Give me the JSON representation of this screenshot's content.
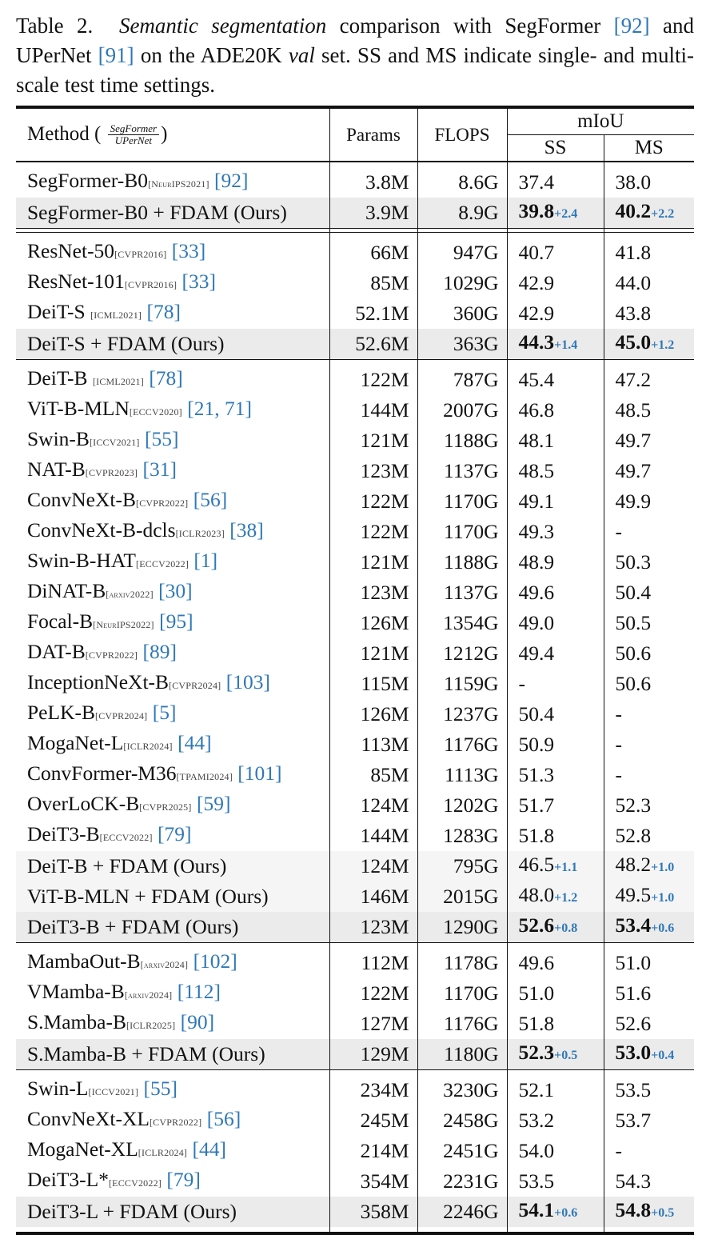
{
  "caption": {
    "label": "Table 2.",
    "title_italic": "Semantic segmentation",
    "text1": " comparison with SegFormer ",
    "cite1": "[92]",
    "text2": " and UPerNet ",
    "cite2": "[91]",
    "text3": " on the ADE20K ",
    "val_italic": "val",
    "text4": " set.  SS and MS indicate single- and multi-scale test time settings."
  },
  "header": {
    "method": "Method (",
    "method_close": ")",
    "frac_num": "SegFormer",
    "frac_den": "UPerNet",
    "params": "Params",
    "flops": "FLOPS",
    "miou": "mIoU",
    "ss": "SS",
    "ms": "MS"
  },
  "groups": [
    {
      "rows": [
        {
          "name": "SegFormer-B0",
          "src": "[NeurIPS2021]",
          "cite": "[92]",
          "params": "3.8M",
          "flops": "8.6G",
          "ss": "37.4",
          "ms": "38.0"
        },
        {
          "name": "SegFormer-B0 + FDAM (Ours)",
          "params": "3.9M",
          "flops": "8.9G",
          "ss": "39.8",
          "ss_d": "+2.4",
          "ms": "40.2",
          "ms_d": "+2.2",
          "ours": true,
          "bold": true
        }
      ]
    },
    {
      "rows": [
        {
          "name": "ResNet-50",
          "src": "[CVPR2016]",
          "cite": "[33]",
          "params": "66M",
          "flops": "947G",
          "ss": "40.7",
          "ms": "41.8"
        },
        {
          "name": "ResNet-101",
          "src": "[CVPR2016]",
          "cite": "[33]",
          "params": "85M",
          "flops": "1029G",
          "ss": "42.9",
          "ms": "44.0"
        },
        {
          "name": "DeiT-S ",
          "src": "[ICML2021]",
          "cite": "[78]",
          "params": "52.1M",
          "flops": "360G",
          "ss": "42.9",
          "ms": "43.8"
        },
        {
          "name": "DeiT-S + FDAM (Ours)",
          "params": "52.6M",
          "flops": "363G",
          "ss": "44.3",
          "ss_d": "+1.4",
          "ms": "45.0",
          "ms_d": "+1.2",
          "ours": true,
          "bold": true
        }
      ]
    },
    {
      "rows": [
        {
          "name": "DeiT-B ",
          "src": "[ICML2021]",
          "cite": "[78]",
          "params": "122M",
          "flops": "787G",
          "ss": "45.4",
          "ms": "47.2"
        },
        {
          "name": "ViT-B-MLN",
          "src": "[ECCV2020]",
          "cite": "[21, 71]",
          "params": "144M",
          "flops": "2007G",
          "ss": "46.8",
          "ms": "48.5"
        },
        {
          "name": "Swin-B",
          "src": "[ICCV2021]",
          "cite": "[55]",
          "params": "121M",
          "flops": "1188G",
          "ss": "48.1",
          "ms": "49.7"
        },
        {
          "name": "NAT-B",
          "src": "[CVPR2023]",
          "cite": "[31]",
          "params": "123M",
          "flops": "1137G",
          "ss": "48.5",
          "ms": "49.7"
        },
        {
          "name": "ConvNeXt-B",
          "src": "[CVPR2022]",
          "cite": "[56]",
          "params": "122M",
          "flops": "1170G",
          "ss": "49.1",
          "ms": "49.9"
        },
        {
          "name": "ConvNeXt-B-dcls",
          "src": "[ICLR2023]",
          "cite": "[38]",
          "params": "122M",
          "flops": "1170G",
          "ss": "49.3",
          "ms": "-"
        },
        {
          "name": "Swin-B-HAT",
          "src": "[ECCV2022]",
          "cite": "[1]",
          "params": "121M",
          "flops": "1188G",
          "ss": "48.9",
          "ms": "50.3"
        },
        {
          "name": "DiNAT-B",
          "src": "[arxiv2022]",
          "cite": "[30]",
          "params": "123M",
          "flops": "1137G",
          "ss": "49.6",
          "ms": "50.4"
        },
        {
          "name": "Focal-B",
          "src": "[NeurIPS2022]",
          "cite": "[95]",
          "params": "126M",
          "flops": "1354G",
          "ss": "49.0",
          "ms": "50.5"
        },
        {
          "name": "DAT-B",
          "src": "[CVPR2022]",
          "cite": "[89]",
          "params": "121M",
          "flops": "1212G",
          "ss": "49.4",
          "ms": "50.6"
        },
        {
          "name": "InceptionNeXt-B",
          "src": "[CVPR2024]",
          "cite": "[103]",
          "params": "115M",
          "flops": "1159G",
          "ss": "-",
          "ms": "50.6"
        },
        {
          "name": "PeLK-B",
          "src": "[CVPR2024]",
          "cite": "[5]",
          "params": "126M",
          "flops": "1237G",
          "ss": "50.4",
          "ms": "-"
        },
        {
          "name": "MogaNet-L",
          "src": "[ICLR2024]",
          "cite": "[44]",
          "params": "113M",
          "flops": "1176G",
          "ss": "50.9",
          "ms": "-"
        },
        {
          "name": "ConvFormer-M36",
          "src": "[TPAMI2024]",
          "cite": "[101]",
          "params": "85M",
          "flops": "1113G",
          "ss": "51.3",
          "ms": "-"
        },
        {
          "name": "OverLoCK-B",
          "src": "[CVPR2025]",
          "cite": "[59]",
          "params": "124M",
          "flops": "1202G",
          "ss": "51.7",
          "ms": "52.3"
        },
        {
          "name": "DeiT3-B",
          "src": "[ECCV2022]",
          "cite": "[79]",
          "params": "144M",
          "flops": "1283G",
          "ss": "51.8",
          "ms": "52.8"
        },
        {
          "name": "DeiT-B + FDAM (Ours)",
          "params": "124M",
          "flops": "795G",
          "ss": "46.5",
          "ss_d": "+1.1",
          "ms": "48.2",
          "ms_d": "+1.0",
          "ours": true,
          "light": true
        },
        {
          "name": "ViT-B-MLN + FDAM (Ours)",
          "params": "146M",
          "flops": "2015G",
          "ss": "48.0",
          "ss_d": "+1.2",
          "ms": "49.5",
          "ms_d": "+1.0",
          "ours": true,
          "light": true
        },
        {
          "name": "DeiT3-B + FDAM (Ours)",
          "params": "123M",
          "flops": "1290G",
          "ss": "52.6",
          "ss_d": "+0.8",
          "ms": "53.4",
          "ms_d": "+0.6",
          "ours": true,
          "bold": true
        }
      ]
    },
    {
      "rows": [
        {
          "name": "MambaOut-B",
          "src": "[arxiv2024]",
          "cite": "[102]",
          "params": "112M",
          "flops": "1178G",
          "ss": "49.6",
          "ms": "51.0"
        },
        {
          "name": "VMamba-B",
          "src": "[arxiv2024]",
          "cite": "[112]",
          "params": "122M",
          "flops": "1170G",
          "ss": "51.0",
          "ms": "51.6"
        },
        {
          "name": "S.Mamba-B",
          "src": "[ICLR2025]",
          "cite": "[90]",
          "params": "127M",
          "flops": "1176G",
          "ss": "51.8",
          "ms": "52.6"
        },
        {
          "name": "S.Mamba-B + FDAM (Ours)",
          "params": "129M",
          "flops": "1180G",
          "ss": "52.3",
          "ss_d": "+0.5",
          "ms": "53.0",
          "ms_d": "+0.4",
          "ours": true,
          "bold": true
        }
      ]
    },
    {
      "rows": [
        {
          "name": "Swin-L",
          "src": "[ICCV2021]",
          "cite": "[55]",
          "params": "234M",
          "flops": "3230G",
          "ss": "52.1",
          "ms": "53.5"
        },
        {
          "name": "ConvNeXt-XL",
          "src": "[CVPR2022]",
          "cite": "[56]",
          "params": "245M",
          "flops": "2458G",
          "ss": "53.2",
          "ms": "53.7"
        },
        {
          "name": "MogaNet-XL",
          "src": "[ICLR2024]",
          "cite": "[44]",
          "params": "214M",
          "flops": "2451G",
          "ss": "54.0",
          "ms": "-"
        },
        {
          "name": "DeiT3-L*",
          "src": "[ECCV2022]",
          "cite": "[79]",
          "params": "354M",
          "flops": "2231G",
          "ss": "53.5",
          "ms": "54.3"
        },
        {
          "name": "DeiT3-L + FDAM (Ours)",
          "params": "358M",
          "flops": "2246G",
          "ss": "54.1",
          "ss_d": "+0.6",
          "ms": "54.8",
          "ms_d": "+0.5",
          "ours": true,
          "bold": true
        }
      ]
    }
  ]
}
